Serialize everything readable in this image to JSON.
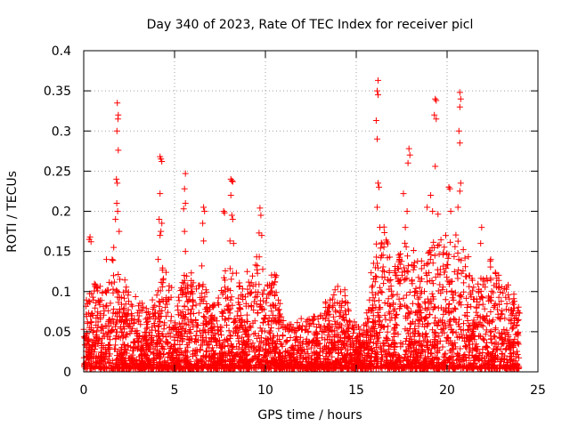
{
  "chart_data": {
    "type": "scatter",
    "title": "Day 340 of 2023, Rate Of TEC Index for receiver picl",
    "xlabel": "GPS time / hours",
    "ylabel": "ROTI / TECUs",
    "xlim": [
      0,
      25
    ],
    "ylim": [
      0,
      0.4
    ],
    "xticks": [
      0,
      5,
      10,
      15,
      20,
      25
    ],
    "yticks": [
      0,
      0.05,
      0.1,
      0.15,
      0.2,
      0.25,
      0.3,
      0.35,
      0.4
    ],
    "xtick_labels": [
      "0",
      "5",
      "10",
      "15",
      "20",
      "25"
    ],
    "ytick_labels": [
      "0",
      "0.05",
      "0.1",
      "0.15",
      "0.2",
      "0.25",
      "0.3",
      "0.35",
      "0.4"
    ],
    "grid": true,
    "marker": "+",
    "marker_color": "#ff0000",
    "x_data_range": [
      0,
      24
    ],
    "envelope_hours": [
      0,
      0.5,
      1,
      1.5,
      2,
      2.5,
      3,
      3.5,
      4,
      4.5,
      5,
      5.5,
      6,
      6.5,
      7,
      7.5,
      8,
      8.5,
      9,
      9.5,
      10,
      10.5,
      11,
      11.5,
      12,
      12.5,
      13,
      13.5,
      14,
      14.5,
      15,
      15.5,
      16,
      16.5,
      17,
      17.5,
      18,
      18.5,
      19,
      19.5,
      20,
      20.5,
      21,
      21.5,
      22,
      22.5,
      23,
      23.5,
      24
    ],
    "envelope_max_roti": [
      0.06,
      0.13,
      0.09,
      0.14,
      0.12,
      0.09,
      0.08,
      0.07,
      0.08,
      0.14,
      0.07,
      0.12,
      0.11,
      0.1,
      0.08,
      0.1,
      0.12,
      0.1,
      0.09,
      0.14,
      0.1,
      0.12,
      0.06,
      0.05,
      0.06,
      0.06,
      0.08,
      0.08,
      0.1,
      0.09,
      0.05,
      0.05,
      0.14,
      0.17,
      0.12,
      0.14,
      0.15,
      0.12,
      0.14,
      0.17,
      0.15,
      0.16,
      0.14,
      0.1,
      0.12,
      0.13,
      0.1,
      0.09,
      0.08
    ],
    "highlight_points": [
      {
        "x": 0.3,
        "y": 0.165
      },
      {
        "x": 0.35,
        "y": 0.168
      },
      {
        "x": 0.4,
        "y": 0.162
      },
      {
        "x": 1.25,
        "y": 0.14
      },
      {
        "x": 1.65,
        "y": 0.155
      },
      {
        "x": 1.85,
        "y": 0.335
      },
      {
        "x": 1.9,
        "y": 0.32
      },
      {
        "x": 1.88,
        "y": 0.315
      },
      {
        "x": 1.83,
        "y": 0.3
      },
      {
        "x": 1.9,
        "y": 0.276
      },
      {
        "x": 1.8,
        "y": 0.24
      },
      {
        "x": 1.85,
        "y": 0.235
      },
      {
        "x": 1.82,
        "y": 0.21
      },
      {
        "x": 1.87,
        "y": 0.2
      },
      {
        "x": 1.75,
        "y": 0.19
      },
      {
        "x": 1.95,
        "y": 0.175
      },
      {
        "x": 4.2,
        "y": 0.268
      },
      {
        "x": 4.25,
        "y": 0.265
      },
      {
        "x": 4.3,
        "y": 0.262
      },
      {
        "x": 4.2,
        "y": 0.222
      },
      {
        "x": 4.15,
        "y": 0.19
      },
      {
        "x": 4.3,
        "y": 0.185
      },
      {
        "x": 4.25,
        "y": 0.175
      },
      {
        "x": 4.2,
        "y": 0.17
      },
      {
        "x": 4.1,
        "y": 0.14
      },
      {
        "x": 5.6,
        "y": 0.247
      },
      {
        "x": 5.55,
        "y": 0.228
      },
      {
        "x": 5.6,
        "y": 0.21
      },
      {
        "x": 5.5,
        "y": 0.203
      },
      {
        "x": 5.55,
        "y": 0.175
      },
      {
        "x": 5.6,
        "y": 0.15
      },
      {
        "x": 6.6,
        "y": 0.205
      },
      {
        "x": 6.65,
        "y": 0.2
      },
      {
        "x": 6.55,
        "y": 0.185
      },
      {
        "x": 6.6,
        "y": 0.163
      },
      {
        "x": 6.5,
        "y": 0.132
      },
      {
        "x": 7.7,
        "y": 0.2
      },
      {
        "x": 7.75,
        "y": 0.198
      },
      {
        "x": 8.1,
        "y": 0.24
      },
      {
        "x": 8.15,
        "y": 0.238
      },
      {
        "x": 8.2,
        "y": 0.237
      },
      {
        "x": 8.1,
        "y": 0.22
      },
      {
        "x": 8.15,
        "y": 0.195
      },
      {
        "x": 8.2,
        "y": 0.19
      },
      {
        "x": 8.05,
        "y": 0.163
      },
      {
        "x": 8.25,
        "y": 0.16
      },
      {
        "x": 8.4,
        "y": 0.123
      },
      {
        "x": 9.0,
        "y": 0.125
      },
      {
        "x": 9.7,
        "y": 0.204
      },
      {
        "x": 9.75,
        "y": 0.195
      },
      {
        "x": 9.65,
        "y": 0.173
      },
      {
        "x": 9.8,
        "y": 0.17
      },
      {
        "x": 10.6,
        "y": 0.12
      },
      {
        "x": 16.2,
        "y": 0.363
      },
      {
        "x": 16.15,
        "y": 0.35
      },
      {
        "x": 16.2,
        "y": 0.345
      },
      {
        "x": 16.1,
        "y": 0.313
      },
      {
        "x": 16.15,
        "y": 0.29
      },
      {
        "x": 16.2,
        "y": 0.235
      },
      {
        "x": 16.25,
        "y": 0.23
      },
      {
        "x": 16.15,
        "y": 0.205
      },
      {
        "x": 16.3,
        "y": 0.18
      },
      {
        "x": 17.9,
        "y": 0.278
      },
      {
        "x": 17.95,
        "y": 0.27
      },
      {
        "x": 17.85,
        "y": 0.26
      },
      {
        "x": 17.6,
        "y": 0.222
      },
      {
        "x": 17.8,
        "y": 0.2
      },
      {
        "x": 17.7,
        "y": 0.18
      },
      {
        "x": 18.9,
        "y": 0.205
      },
      {
        "x": 19.1,
        "y": 0.22
      },
      {
        "x": 19.2,
        "y": 0.2
      },
      {
        "x": 19.35,
        "y": 0.34
      },
      {
        "x": 19.4,
        "y": 0.338
      },
      {
        "x": 19.3,
        "y": 0.32
      },
      {
        "x": 19.4,
        "y": 0.315
      },
      {
        "x": 19.35,
        "y": 0.256
      },
      {
        "x": 20.1,
        "y": 0.23
      },
      {
        "x": 20.15,
        "y": 0.228
      },
      {
        "x": 20.2,
        "y": 0.2
      },
      {
        "x": 20.7,
        "y": 0.348
      },
      {
        "x": 20.75,
        "y": 0.34
      },
      {
        "x": 20.7,
        "y": 0.33
      },
      {
        "x": 20.65,
        "y": 0.3
      },
      {
        "x": 20.7,
        "y": 0.285
      },
      {
        "x": 20.75,
        "y": 0.235
      },
      {
        "x": 20.7,
        "y": 0.225
      },
      {
        "x": 20.6,
        "y": 0.205
      },
      {
        "x": 21.9,
        "y": 0.18
      },
      {
        "x": 21.85,
        "y": 0.16
      },
      {
        "x": 22.4,
        "y": 0.14
      },
      {
        "x": 23.7,
        "y": 0.088
      },
      {
        "x": 23.8,
        "y": 0.07
      }
    ]
  }
}
